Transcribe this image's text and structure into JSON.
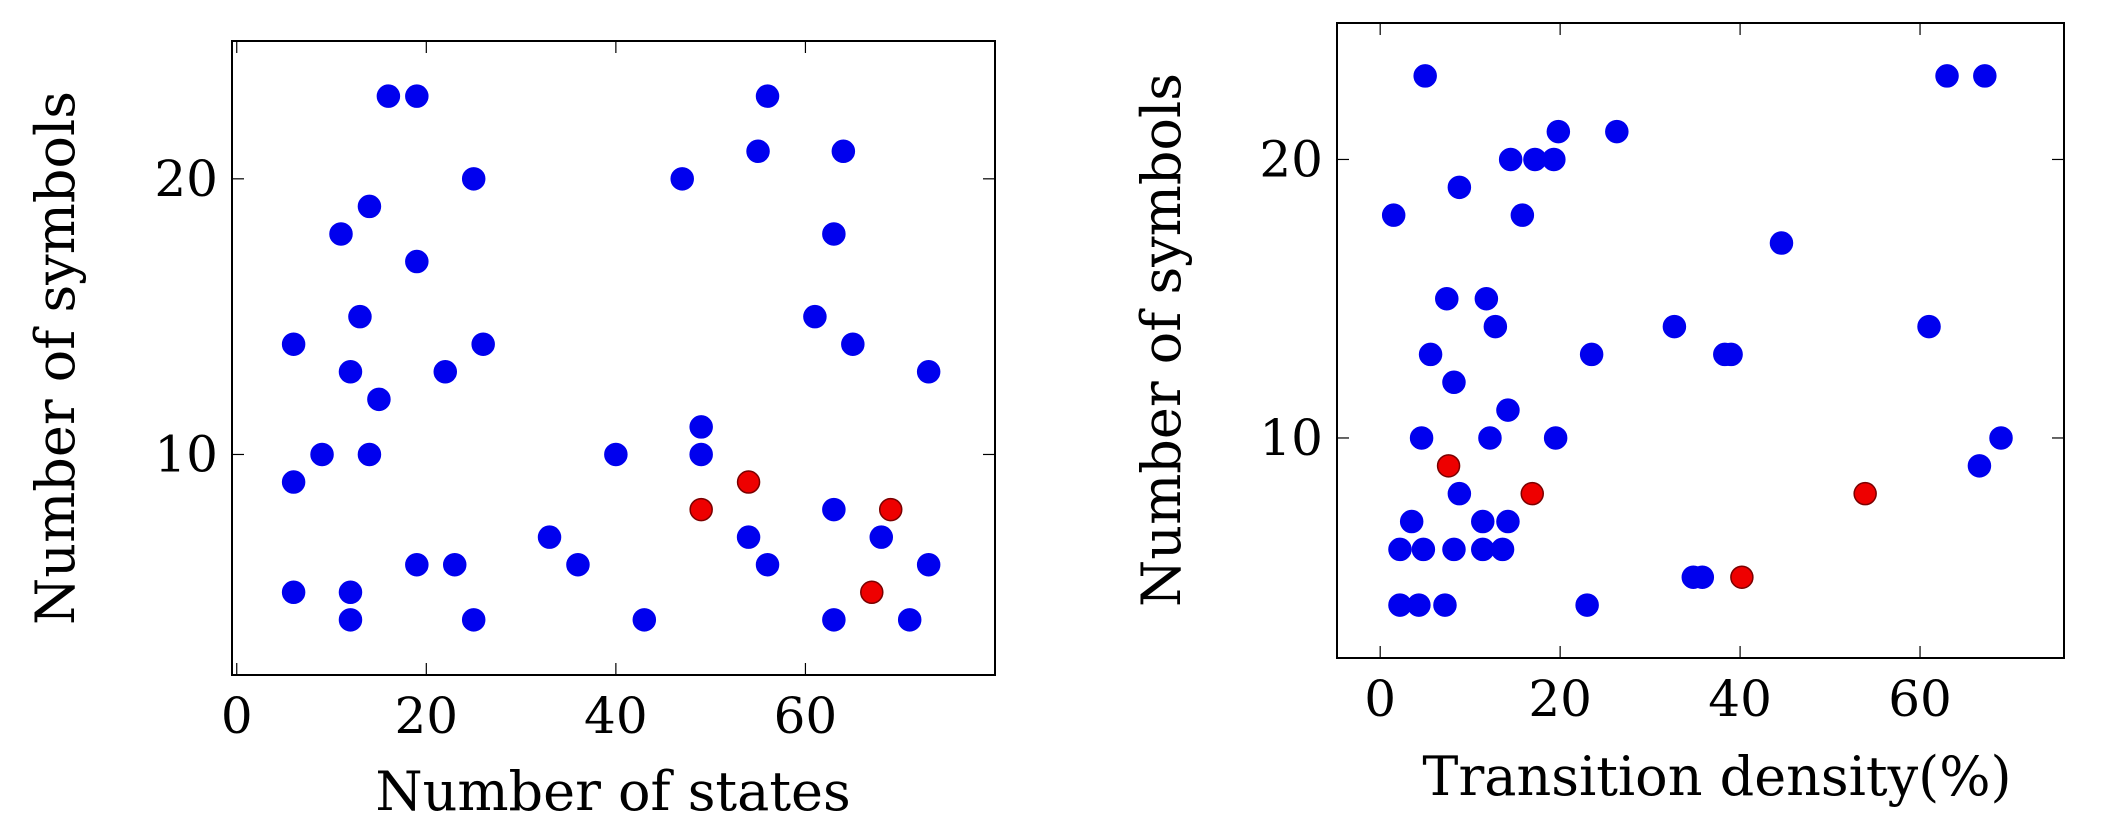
{
  "chart_data": [
    {
      "type": "scatter",
      "title": "",
      "xlabel": "Number of states",
      "ylabel": "Number of symbols",
      "xlim": [
        -0.5,
        80
      ],
      "ylim": [
        2,
        25
      ],
      "xticks": [
        0,
        20,
        40,
        60
      ],
      "yticks": [
        10,
        20
      ],
      "grid": false,
      "series": [
        {
          "color": "#0000ee",
          "points": [
            {
              "x": 6,
              "y": 14
            },
            {
              "x": 6,
              "y": 9
            },
            {
              "x": 6,
              "y": 5
            },
            {
              "x": 9,
              "y": 10
            },
            {
              "x": 11,
              "y": 18
            },
            {
              "x": 12,
              "y": 13
            },
            {
              "x": 12,
              "y": 5
            },
            {
              "x": 12,
              "y": 4
            },
            {
              "x": 13,
              "y": 15
            },
            {
              "x": 14,
              "y": 19
            },
            {
              "x": 14,
              "y": 10
            },
            {
              "x": 15,
              "y": 12
            },
            {
              "x": 16,
              "y": 23
            },
            {
              "x": 19,
              "y": 23
            },
            {
              "x": 19,
              "y": 17
            },
            {
              "x": 19,
              "y": 6
            },
            {
              "x": 22,
              "y": 13
            },
            {
              "x": 23,
              "y": 6
            },
            {
              "x": 25,
              "y": 20
            },
            {
              "x": 25,
              "y": 4
            },
            {
              "x": 26,
              "y": 14
            },
            {
              "x": 33,
              "y": 7
            },
            {
              "x": 36,
              "y": 6
            },
            {
              "x": 40,
              "y": 10
            },
            {
              "x": 43,
              "y": 4
            },
            {
              "x": 47,
              "y": 20
            },
            {
              "x": 49,
              "y": 11
            },
            {
              "x": 49,
              "y": 10
            },
            {
              "x": 54,
              "y": 7
            },
            {
              "x": 55,
              "y": 21
            },
            {
              "x": 56,
              "y": 23
            },
            {
              "x": 56,
              "y": 6
            },
            {
              "x": 61,
              "y": 15
            },
            {
              "x": 63,
              "y": 18
            },
            {
              "x": 63,
              "y": 8
            },
            {
              "x": 63,
              "y": 4
            },
            {
              "x": 64,
              "y": 21
            },
            {
              "x": 65,
              "y": 14
            },
            {
              "x": 68,
              "y": 7
            },
            {
              "x": 71,
              "y": 4
            },
            {
              "x": 73,
              "y": 13
            },
            {
              "x": 73,
              "y": 6
            }
          ]
        },
        {
          "color": "#ee0000",
          "points": [
            {
              "x": 49,
              "y": 8
            },
            {
              "x": 54,
              "y": 9
            },
            {
              "x": 67,
              "y": 5
            },
            {
              "x": 69,
              "y": 8
            }
          ]
        }
      ]
    },
    {
      "type": "scatter",
      "title": "",
      "xlabel": "Transition density(%)",
      "ylabel": "Number of symbols",
      "xlim": [
        -4.8,
        76
      ],
      "ylim": [
        2.1,
        24.9
      ],
      "xticks": [
        0,
        20,
        40,
        60
      ],
      "yticks": [
        10,
        20
      ],
      "grid": false,
      "series": [
        {
          "color": "#0000ee",
          "points": [
            {
              "x": 1.5,
              "y": 18
            },
            {
              "x": 2.2,
              "y": 4
            },
            {
              "x": 2.2,
              "y": 6
            },
            {
              "x": 3.5,
              "y": 7
            },
            {
              "x": 4.3,
              "y": 4
            },
            {
              "x": 4.6,
              "y": 10
            },
            {
              "x": 4.8,
              "y": 6
            },
            {
              "x": 5.0,
              "y": 23
            },
            {
              "x": 5.6,
              "y": 13
            },
            {
              "x": 7.2,
              "y": 4
            },
            {
              "x": 7.4,
              "y": 15
            },
            {
              "x": 8.2,
              "y": 12
            },
            {
              "x": 8.2,
              "y": 6
            },
            {
              "x": 8.8,
              "y": 19
            },
            {
              "x": 8.8,
              "y": 8
            },
            {
              "x": 11.4,
              "y": 7
            },
            {
              "x": 11.4,
              "y": 6
            },
            {
              "x": 11.8,
              "y": 15
            },
            {
              "x": 12.2,
              "y": 10
            },
            {
              "x": 12.8,
              "y": 14
            },
            {
              "x": 13.6,
              "y": 6
            },
            {
              "x": 14.2,
              "y": 11
            },
            {
              "x": 14.2,
              "y": 7
            },
            {
              "x": 14.5,
              "y": 20
            },
            {
              "x": 15.8,
              "y": 18
            },
            {
              "x": 17.2,
              "y": 20
            },
            {
              "x": 19.3,
              "y": 20
            },
            {
              "x": 19.5,
              "y": 10
            },
            {
              "x": 19.8,
              "y": 21
            },
            {
              "x": 23.0,
              "y": 4
            },
            {
              "x": 23.5,
              "y": 13
            },
            {
              "x": 26.3,
              "y": 21
            },
            {
              "x": 32.7,
              "y": 14
            },
            {
              "x": 34.8,
              "y": 5
            },
            {
              "x": 35.8,
              "y": 5
            },
            {
              "x": 38.3,
              "y": 13
            },
            {
              "x": 39.0,
              "y": 13
            },
            {
              "x": 44.6,
              "y": 17
            },
            {
              "x": 61.0,
              "y": 14
            },
            {
              "x": 63.0,
              "y": 23
            },
            {
              "x": 66.6,
              "y": 9
            },
            {
              "x": 67.2,
              "y": 23
            },
            {
              "x": 69.0,
              "y": 10
            }
          ]
        },
        {
          "color": "#ee0000",
          "points": [
            {
              "x": 7.6,
              "y": 9
            },
            {
              "x": 16.9,
              "y": 8
            },
            {
              "x": 40.2,
              "y": 5
            },
            {
              "x": 53.9,
              "y": 8
            }
          ]
        }
      ]
    }
  ]
}
